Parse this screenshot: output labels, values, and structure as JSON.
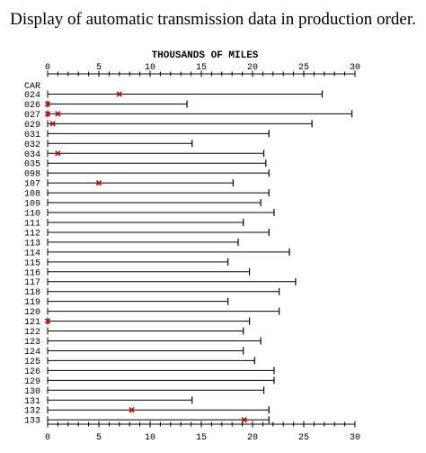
{
  "page": {
    "title": "Display of automatic transmission data in production order."
  },
  "chart_data": {
    "type": "scatter",
    "axis_title": "THOUSANDS OF MILES",
    "category_header": "CAR",
    "xlim": [
      0,
      30
    ],
    "x_ticks": [
      0,
      5,
      10,
      15,
      20,
      25,
      30
    ],
    "grid": false,
    "failure_marker": "x",
    "cars": [
      {
        "id": "024",
        "end": 26.8,
        "failures": [
          7.0
        ]
      },
      {
        "id": "026",
        "end": 13.6,
        "failures": [
          0.0
        ]
      },
      {
        "id": "027",
        "end": 29.7,
        "failures": [
          0.0,
          1.0
        ]
      },
      {
        "id": "029",
        "end": 25.8,
        "failures": [
          0.5
        ]
      },
      {
        "id": "031",
        "end": 21.6,
        "failures": []
      },
      {
        "id": "032",
        "end": 14.1,
        "failures": []
      },
      {
        "id": "034",
        "end": 21.1,
        "failures": [
          1.0
        ]
      },
      {
        "id": "035",
        "end": 21.3,
        "failures": []
      },
      {
        "id": "098",
        "end": 21.6,
        "failures": []
      },
      {
        "id": "107",
        "end": 18.1,
        "failures": [
          5.0
        ]
      },
      {
        "id": "108",
        "end": 21.6,
        "failures": []
      },
      {
        "id": "109",
        "end": 20.8,
        "failures": []
      },
      {
        "id": "110",
        "end": 22.1,
        "failures": []
      },
      {
        "id": "111",
        "end": 19.1,
        "failures": []
      },
      {
        "id": "112",
        "end": 21.6,
        "failures": []
      },
      {
        "id": "113",
        "end": 18.6,
        "failures": []
      },
      {
        "id": "114",
        "end": 23.6,
        "failures": []
      },
      {
        "id": "115",
        "end": 17.6,
        "failures": []
      },
      {
        "id": "116",
        "end": 19.7,
        "failures": []
      },
      {
        "id": "117",
        "end": 24.2,
        "failures": []
      },
      {
        "id": "118",
        "end": 22.6,
        "failures": []
      },
      {
        "id": "119",
        "end": 17.6,
        "failures": []
      },
      {
        "id": "120",
        "end": 22.6,
        "failures": []
      },
      {
        "id": "121",
        "end": 19.7,
        "failures": [
          0.0
        ]
      },
      {
        "id": "122",
        "end": 19.1,
        "failures": []
      },
      {
        "id": "123",
        "end": 20.8,
        "failures": []
      },
      {
        "id": "124",
        "end": 19.1,
        "failures": []
      },
      {
        "id": "125",
        "end": 20.2,
        "failures": []
      },
      {
        "id": "126",
        "end": 22.1,
        "failures": []
      },
      {
        "id": "129",
        "end": 22.1,
        "failures": []
      },
      {
        "id": "130",
        "end": 21.1,
        "failures": []
      },
      {
        "id": "131",
        "end": 14.1,
        "failures": []
      },
      {
        "id": "132",
        "end": 21.6,
        "failures": [
          8.2
        ]
      },
      {
        "id": "133",
        "end": 21.6,
        "failures": [
          19.2
        ]
      }
    ],
    "colors": {
      "line": "#000000",
      "failure": "#d40000"
    }
  }
}
